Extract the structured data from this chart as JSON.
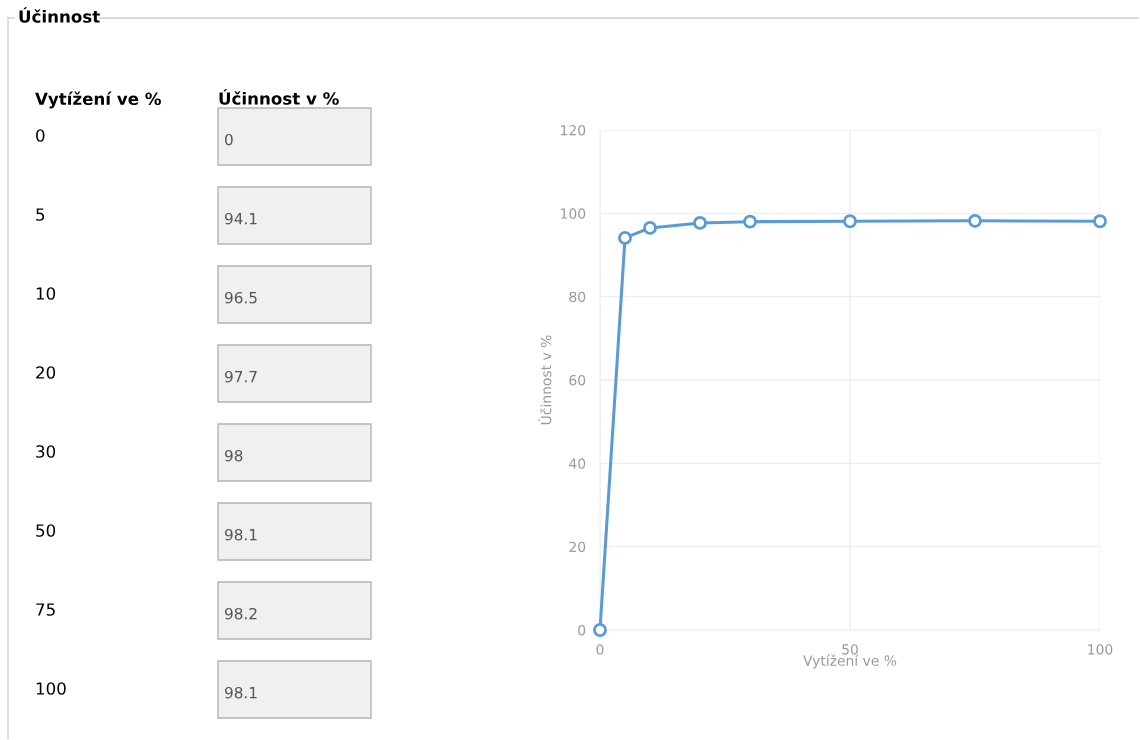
{
  "chart_data": [
    {
      "type": "other",
      "title": "Účinnost",
      "annotations": [
        "Vytížení ve %",
        "Účinnost v %",
        "0",
        "0",
        "5",
        "94.1",
        "10",
        "96.5",
        "20",
        "97.7",
        "30",
        "98",
        "50",
        "98.1",
        "75",
        "98.2",
        "100",
        "98.1"
      ]
    },
    {
      "type": "line",
      "xlabel": "Vytížení ve %",
      "ylabel": "Účinnost v %",
      "x": [
        0,
        5,
        10,
        20,
        30,
        50,
        75,
        100
      ],
      "series": [
        {
          "color": "#5b9bd5",
          "values": [
            0,
            94.1,
            96.5,
            97.7,
            98,
            98.1,
            98.2,
            98.1
          ]
        }
      ],
      "xlim": [
        0,
        100
      ],
      "xticks": [
        0,
        50,
        100
      ],
      "ylim": [
        0,
        120
      ],
      "yticks": [
        0,
        20,
        40,
        60,
        80,
        100,
        120
      ],
      "grid": true,
      "marker": "circle",
      "line_style": "solid"
    }
  ]
}
